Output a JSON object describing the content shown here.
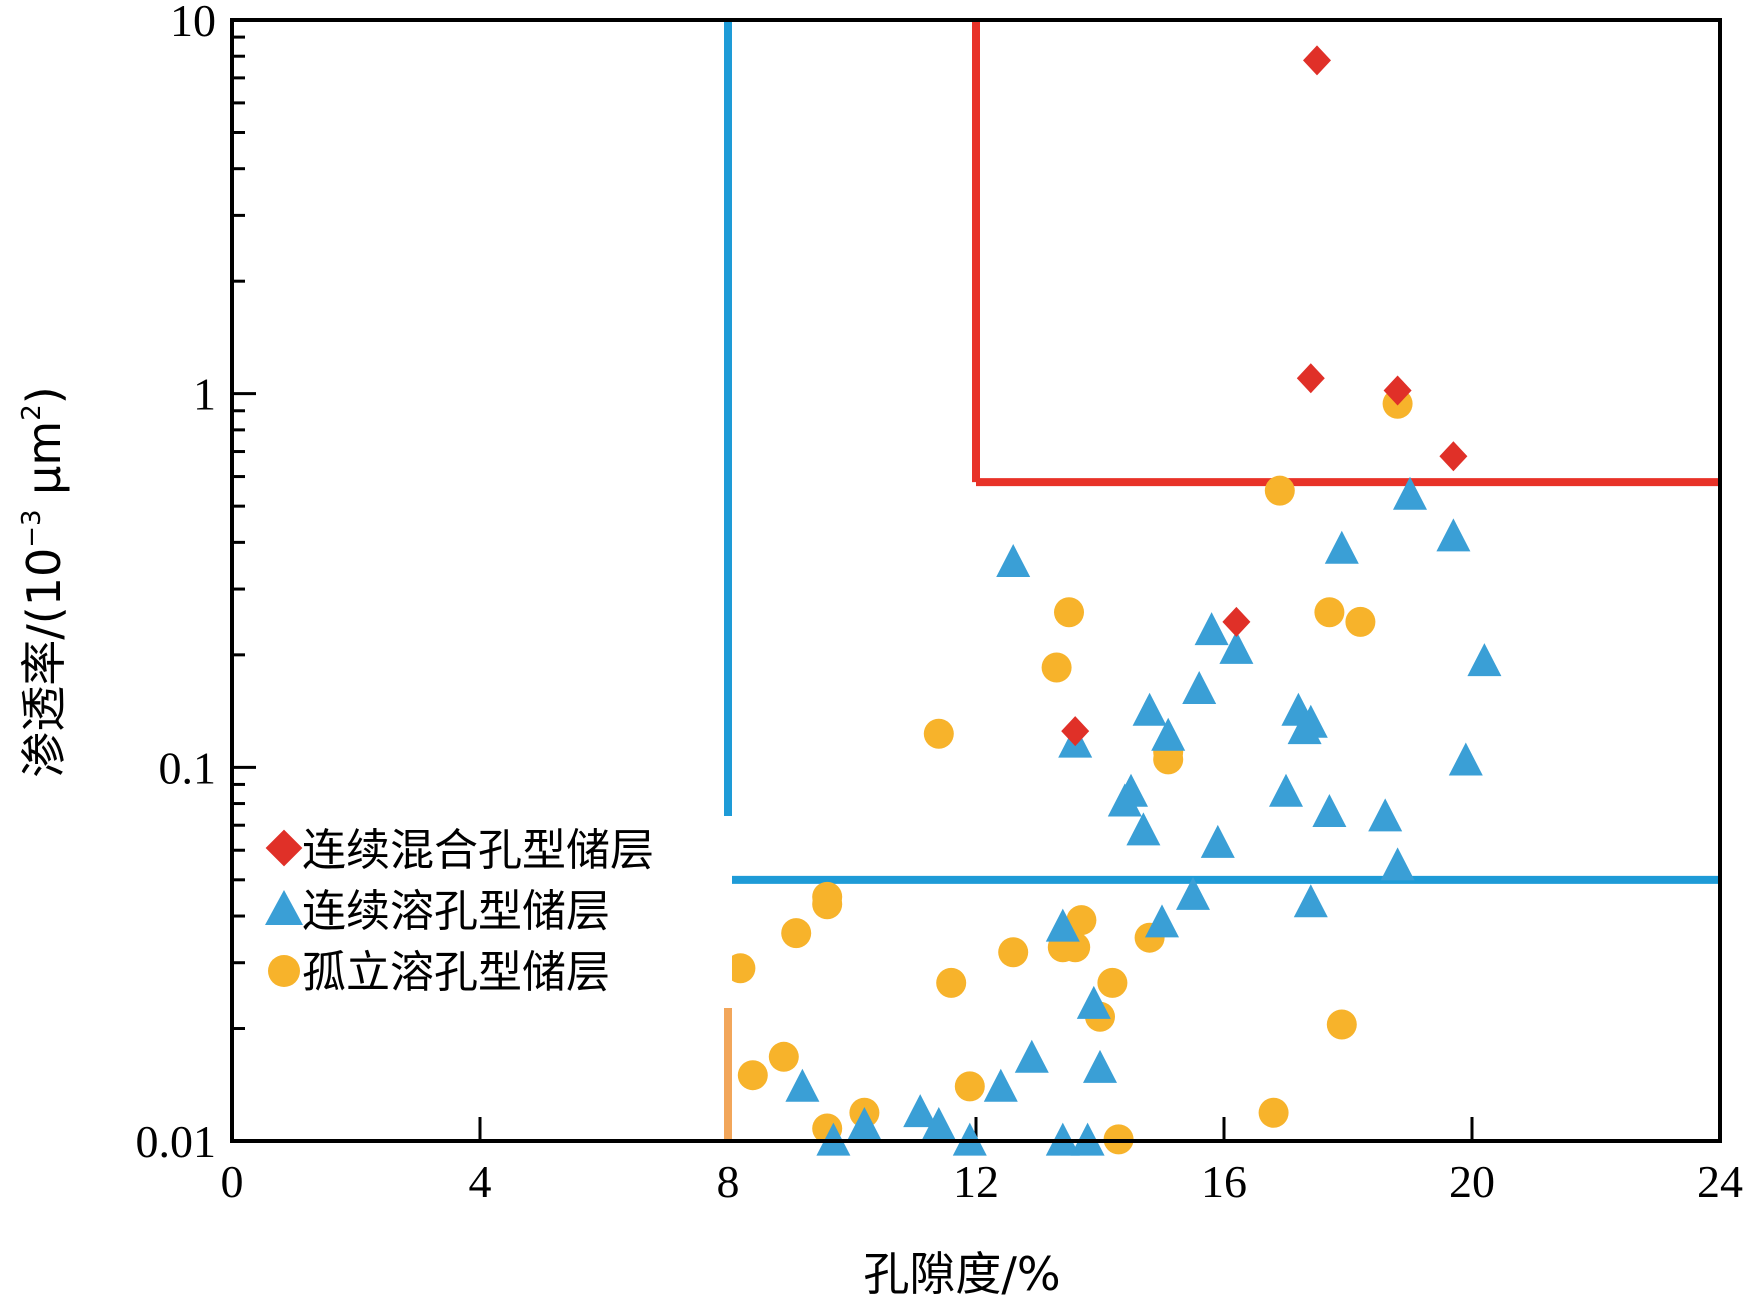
{
  "chart_data": {
    "type": "scatter",
    "xlabel": "孔隙度/%",
    "ylabel": "渗透率/(10",
    "ylabel_sup": "−3",
    "ylabel_unit": " μm",
    "ylabel_unit_sup": "2",
    "ylabel_end": ")",
    "xlim": [
      0,
      24
    ],
    "ylim": [
      0.01,
      10
    ],
    "yscale": "log",
    "xticks": [
      0,
      4,
      8,
      12,
      16,
      20,
      24
    ],
    "xtick_labels": [
      "0",
      "4",
      "8",
      "12",
      "16",
      "20",
      "24"
    ],
    "yticks": [
      0.01,
      0.1,
      1,
      10
    ],
    "ytick_labels": [
      "0.01",
      "0.1",
      "1",
      "10"
    ],
    "grid": false,
    "legend_position": "left",
    "series": [
      {
        "name": "连续混合孔型储层",
        "marker": "diamond",
        "color": "#e03028",
        "points": [
          [
            17.5,
            7.8
          ],
          [
            17.4,
            1.1
          ],
          [
            18.8,
            1.02
          ],
          [
            19.7,
            0.68
          ],
          [
            16.2,
            0.245
          ],
          [
            13.6,
            0.125
          ]
        ]
      },
      {
        "name": "连续溶孔型储层",
        "marker": "triangle",
        "color": "#3a9fd6",
        "points": [
          [
            19.0,
            0.53
          ],
          [
            19.7,
            0.41
          ],
          [
            17.9,
            0.38
          ],
          [
            12.6,
            0.35
          ],
          [
            15.8,
            0.23
          ],
          [
            16.2,
            0.205
          ],
          [
            20.2,
            0.19
          ],
          [
            15.6,
            0.16
          ],
          [
            14.8,
            0.14
          ],
          [
            17.2,
            0.14
          ],
          [
            17.4,
            0.13
          ],
          [
            17.3,
            0.125
          ],
          [
            15.1,
            0.12
          ],
          [
            13.6,
            0.115
          ],
          [
            19.9,
            0.103
          ],
          [
            17.0,
            0.085
          ],
          [
            14.5,
            0.085
          ],
          [
            14.4,
            0.08
          ],
          [
            17.7,
            0.075
          ],
          [
            18.6,
            0.073
          ],
          [
            14.7,
            0.067
          ],
          [
            15.9,
            0.062
          ],
          [
            18.8,
            0.054
          ],
          [
            15.5,
            0.045
          ],
          [
            17.4,
            0.043
          ],
          [
            15.0,
            0.038
          ],
          [
            13.4,
            0.037
          ],
          [
            13.9,
            0.023
          ],
          [
            12.9,
            0.0165
          ],
          [
            14.0,
            0.0155
          ],
          [
            12.4,
            0.0138
          ],
          [
            9.2,
            0.0138
          ],
          [
            11.1,
            0.0118
          ],
          [
            11.4,
            0.0109
          ],
          [
            10.2,
            0.0109
          ],
          [
            9.7,
            0.0099
          ],
          [
            11.9,
            0.0099
          ],
          [
            13.4,
            0.0099
          ],
          [
            13.8,
            0.0099
          ]
        ]
      },
      {
        "name": "孤立溶孔型储层",
        "marker": "circle",
        "color": "#f7b32b",
        "points": [
          [
            18.8,
            0.94
          ],
          [
            16.9,
            0.55
          ],
          [
            13.5,
            0.26
          ],
          [
            17.7,
            0.26
          ],
          [
            18.2,
            0.245
          ],
          [
            13.3,
            0.185
          ],
          [
            11.4,
            0.123
          ],
          [
            15.1,
            0.11
          ],
          [
            15.1,
            0.105
          ],
          [
            9.6,
            0.045
          ],
          [
            9.6,
            0.043
          ],
          [
            13.7,
            0.039
          ],
          [
            9.1,
            0.036
          ],
          [
            14.8,
            0.035
          ],
          [
            13.4,
            0.033
          ],
          [
            13.6,
            0.033
          ],
          [
            12.6,
            0.032
          ],
          [
            8.2,
            0.029
          ],
          [
            11.6,
            0.0265
          ],
          [
            14.2,
            0.0265
          ],
          [
            14.0,
            0.0215
          ],
          [
            17.9,
            0.0205
          ],
          [
            8.9,
            0.0168
          ],
          [
            8.4,
            0.015
          ],
          [
            11.9,
            0.014
          ],
          [
            10.2,
            0.0119
          ],
          [
            16.8,
            0.0119
          ],
          [
            9.6,
            0.0108
          ],
          [
            14.3,
            0.0101
          ]
        ]
      }
    ],
    "reference_lines": [
      {
        "color": "#1e9bd7",
        "lines": [
          {
            "x": [
              8,
              8
            ],
            "y": [
              10,
              0.05
            ]
          },
          {
            "x": [
              8,
              24
            ],
            "y": [
              0.05,
              0.05
            ]
          }
        ]
      },
      {
        "color": "#e83228",
        "lines": [
          {
            "x": [
              12,
              12
            ],
            "y": [
              10,
              0.58
            ]
          },
          {
            "x": [
              12,
              24
            ],
            "y": [
              0.58,
              0.58
            ]
          }
        ]
      },
      {
        "color": "#f2a65a",
        "lines": [
          {
            "x": [
              8,
              8
            ],
            "y": [
              0.05,
              0.01
            ]
          }
        ]
      }
    ]
  }
}
